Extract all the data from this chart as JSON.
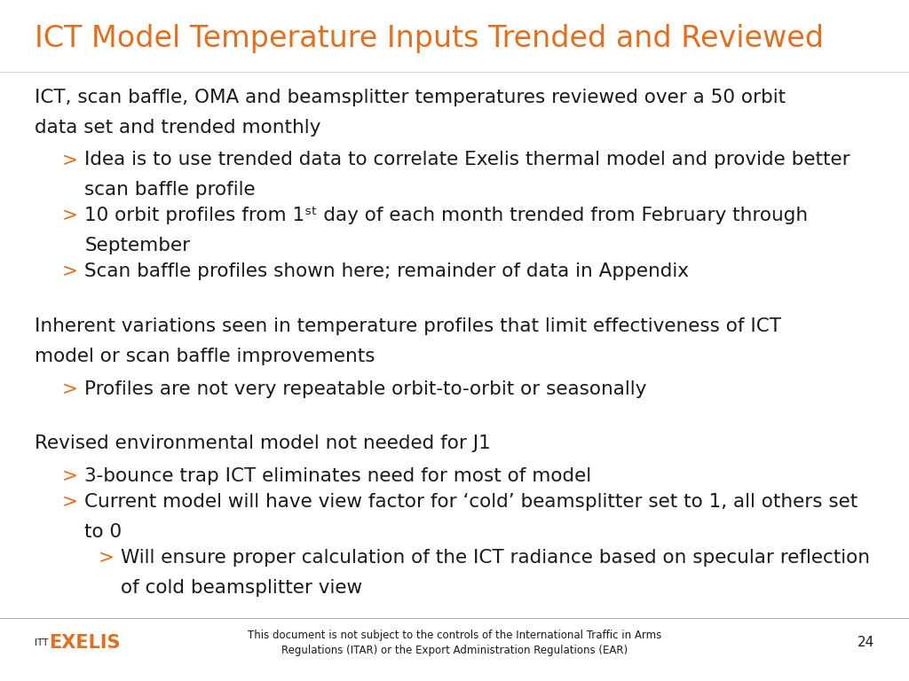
{
  "title": "ICT Model Temperature Inputs Trended and Reviewed",
  "title_color": "#E07020",
  "title_fontsize": 24,
  "background_color": "#FFFFFF",
  "text_color": "#1A1A1A",
  "bullet_color": "#E07020",
  "body_fontsize": 15.5,
  "bullet_fontsize": 15.5,
  "footer_fontsize": 8.5,
  "page_number": "24",
  "footer_text": "This document is not subject to the controls of the International Traffic in Arms\nRegulations (ITAR) or the Export Administration Regulations (EAR)",
  "sections": [
    {
      "header": "ICT, scan baffle, OMA and beamsplitter temperatures reviewed over a 50 orbit\ndata set and trended monthly",
      "bullets": [
        {
          "text": "Idea is to use trended data to correlate Exelis thermal model and provide better\nscan baffle profile",
          "level": 1
        },
        {
          "text": "10 orbit profiles from 1ˢᵗ day of each month trended from February through\nSeptember",
          "level": 1
        },
        {
          "text": "Scan baffle profiles shown here; remainder of data in Appendix",
          "level": 1
        }
      ]
    },
    {
      "header": "Inherent variations seen in temperature profiles that limit effectiveness of ICT\nmodel or scan baffle improvements",
      "bullets": [
        {
          "text": "Profiles are not very repeatable orbit-to-orbit or seasonally",
          "level": 1
        }
      ]
    },
    {
      "header": "Revised environmental model not needed for J1",
      "bullets": [
        {
          "text": "3-bounce trap ICT eliminates need for most of model",
          "level": 1
        },
        {
          "text": "Current model will have view factor for ‘cold’ beamsplitter set to 1, all others set\nto 0",
          "level": 1
        },
        {
          "text": "Will ensure proper calculation of the ICT radiance based on specular reflection\nof cold beamsplitter view",
          "level": 2
        }
      ]
    }
  ]
}
